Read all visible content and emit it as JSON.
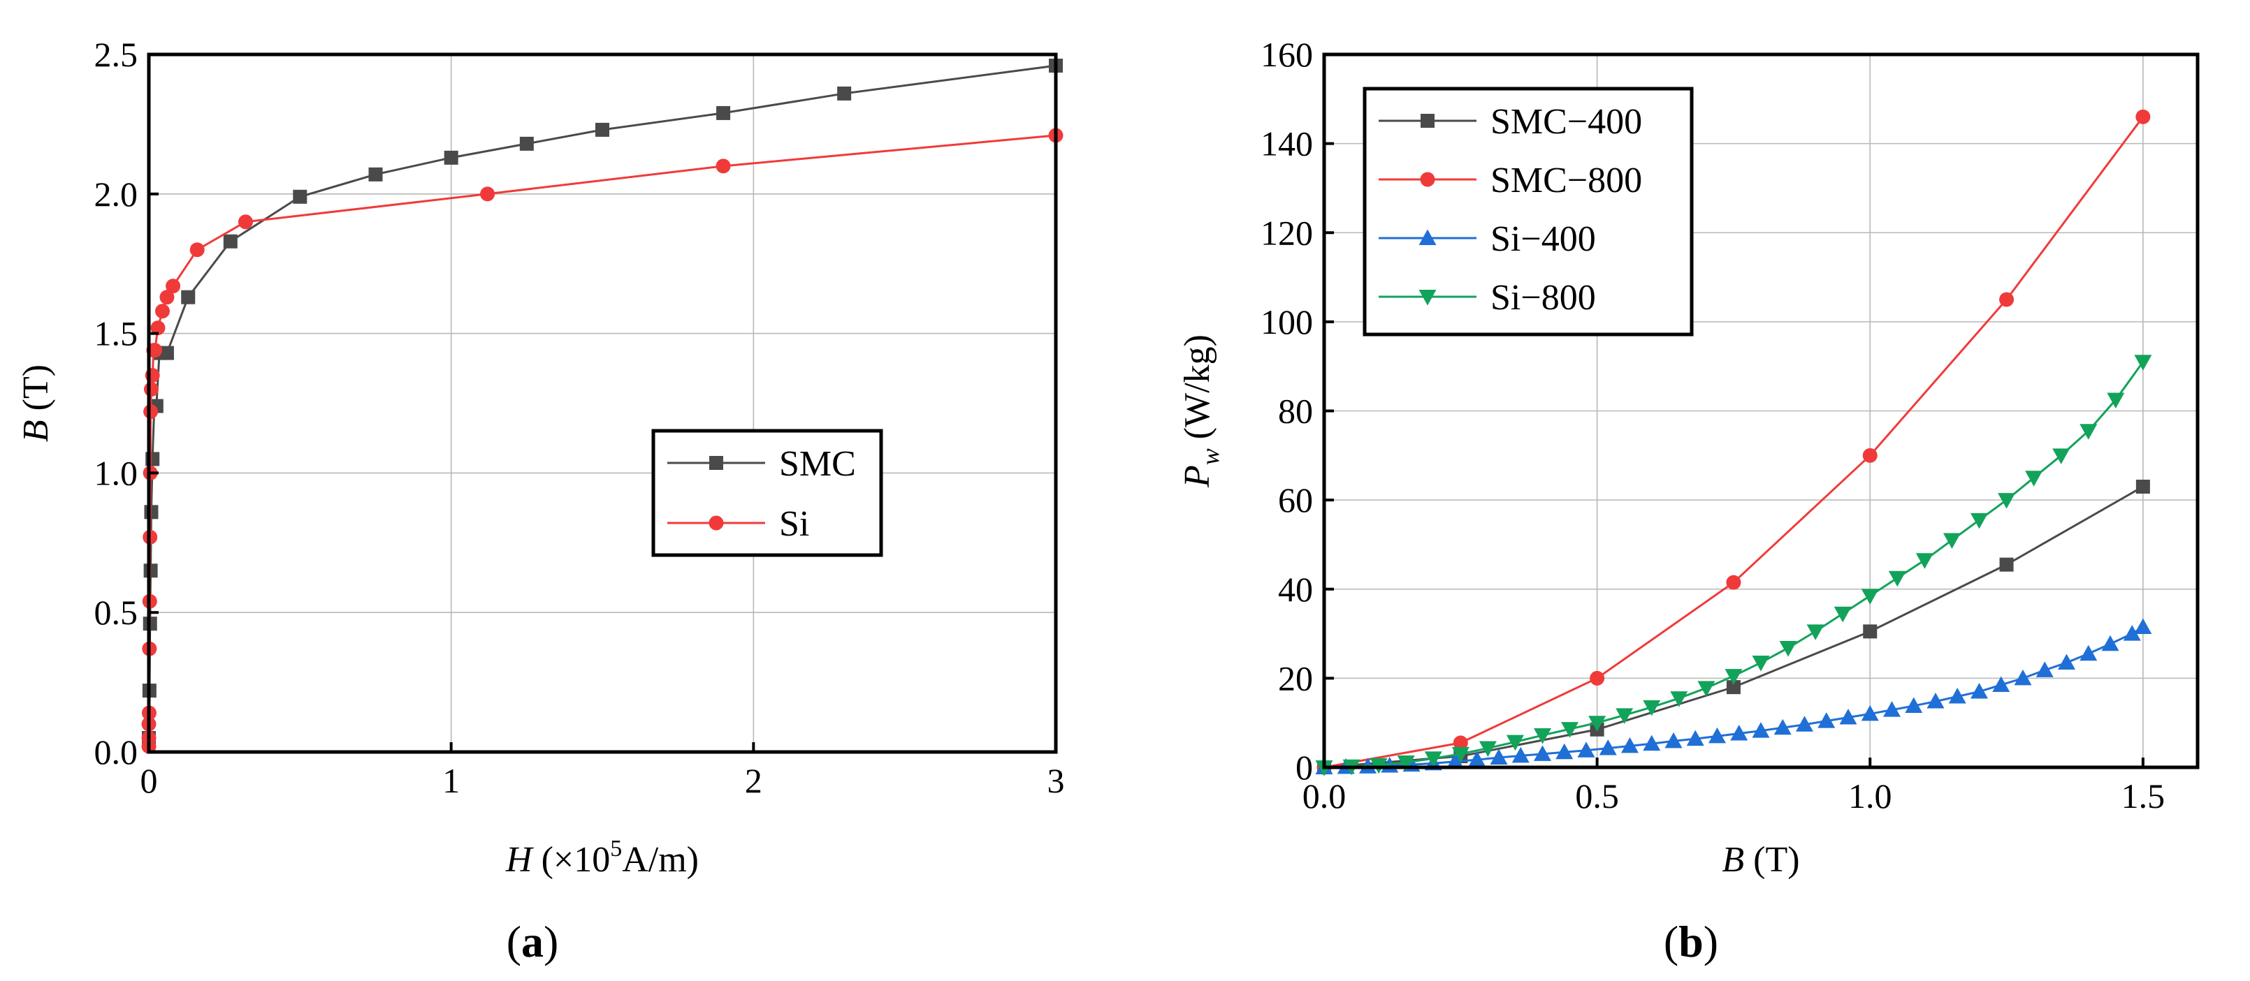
{
  "chart_data": [
    {
      "type": "line",
      "panel_label": "a",
      "title": "",
      "xlabel": {
        "italic": "H",
        "prefix": " (×10",
        "sup": "5",
        "suffix": "A/m)"
      },
      "ylabel": {
        "italic": "B",
        "suffix": " (T)"
      },
      "xlim": [
        0,
        3
      ],
      "ylim": [
        0,
        2.5
      ],
      "xticks": [
        0,
        1,
        2,
        3
      ],
      "xtick_labels": [
        "0",
        "1",
        "2",
        "3"
      ],
      "yticks": [
        0,
        0.5,
        1.0,
        1.5,
        2.0,
        2.5
      ],
      "ytick_labels": [
        "0.0",
        "0.5",
        "1.0",
        "1.5",
        "2.0",
        "2.5"
      ],
      "grid": true,
      "legend_position": "center-right",
      "series": [
        {
          "name": "SMC",
          "color": "#4a4a4a",
          "marker": "square",
          "x": [
            0.0,
            0.002,
            0.004,
            0.006,
            0.008,
            0.012,
            0.018,
            0.025,
            0.035,
            0.06,
            0.13,
            0.27,
            0.5,
            0.75,
            1.0,
            1.25,
            1.5,
            1.9,
            2.3,
            3.0
          ],
          "y": [
            0.05,
            0.22,
            0.46,
            0.65,
            0.86,
            1.05,
            1.24,
            1.24,
            1.43,
            1.43,
            1.63,
            1.83,
            1.99,
            2.07,
            2.13,
            2.18,
            2.23,
            2.29,
            2.36,
            2.46
          ]
        },
        {
          "name": "Si",
          "color": "#f03a3a",
          "marker": "circle",
          "x": [
            0.0,
            0.0,
            0.0,
            0.001,
            0.002,
            0.003,
            0.004,
            0.005,
            0.006,
            0.008,
            0.012,
            0.016,
            0.02,
            0.03,
            0.045,
            0.06,
            0.08,
            0.16,
            0.32,
            1.12,
            1.9,
            3.0
          ],
          "y": [
            0.02,
            0.05,
            0.1,
            0.14,
            0.37,
            0.54,
            0.77,
            1.0,
            1.22,
            1.3,
            1.35,
            1.44,
            1.44,
            1.52,
            1.58,
            1.63,
            1.67,
            1.8,
            1.9,
            2.0,
            2.1,
            2.21
          ]
        }
      ]
    },
    {
      "type": "line",
      "panel_label": "b",
      "title": "",
      "xlabel": {
        "italic": "B",
        "suffix": " (T)"
      },
      "ylabel": {
        "italic": "P",
        "sub": "w",
        "suffix": " (W/kg)"
      },
      "xlim": [
        0,
        1.6
      ],
      "ylim": [
        0,
        160
      ],
      "xticks": [
        0,
        0.5,
        1.0,
        1.5
      ],
      "xtick_labels": [
        "0.0",
        "0.5",
        "1.0",
        "1.5"
      ],
      "yticks": [
        0,
        20,
        40,
        60,
        80,
        100,
        120,
        140,
        160
      ],
      "ytick_labels": [
        "0",
        "20",
        "40",
        "60",
        "80",
        "100",
        "120",
        "140",
        "160"
      ],
      "grid": true,
      "legend_position": "top-left",
      "series": [
        {
          "name": "SMC−400",
          "color": "#4a4a4a",
          "marker": "square",
          "x": [
            0.0,
            0.25,
            0.5,
            0.75,
            1.0,
            1.25,
            1.5
          ],
          "y": [
            0,
            2.5,
            8.5,
            18,
            30.5,
            45.5,
            63
          ]
        },
        {
          "name": "SMC−800",
          "color": "#f03a3a",
          "marker": "circle",
          "x": [
            0.0,
            0.25,
            0.5,
            0.75,
            1.0,
            1.25,
            1.5
          ],
          "y": [
            0,
            5.5,
            20,
            41.5,
            70,
            105,
            146
          ]
        },
        {
          "name": "Si−400",
          "color": "#1f6fd6",
          "marker": "triangle-up",
          "x": [
            0.0,
            0.04,
            0.08,
            0.12,
            0.16,
            0.2,
            0.24,
            0.28,
            0.32,
            0.36,
            0.4,
            0.44,
            0.48,
            0.52,
            0.56,
            0.6,
            0.64,
            0.68,
            0.72,
            0.76,
            0.8,
            0.84,
            0.88,
            0.92,
            0.96,
            1.0,
            1.04,
            1.08,
            1.12,
            1.16,
            1.2,
            1.24,
            1.28,
            1.32,
            1.36,
            1.4,
            1.44,
            1.48,
            1.5
          ],
          "y": [
            0,
            0.1,
            0.2,
            0.4,
            0.6,
            0.9,
            1.3,
            1.7,
            2.2,
            2.6,
            3.0,
            3.4,
            3.8,
            4.3,
            4.8,
            5.3,
            5.9,
            6.4,
            7.0,
            7.6,
            8.2,
            8.9,
            9.6,
            10.4,
            11.2,
            12.0,
            12.9,
            13.8,
            14.8,
            15.9,
            17.0,
            18.5,
            20.0,
            21.8,
            23.5,
            25.5,
            27.7,
            30.0,
            31.5
          ]
        },
        {
          "name": "Si−800",
          "color": "#12a35a",
          "marker": "triangle-down",
          "x": [
            0.0,
            0.05,
            0.1,
            0.15,
            0.2,
            0.25,
            0.3,
            0.35,
            0.4,
            0.45,
            0.5,
            0.55,
            0.6,
            0.65,
            0.7,
            0.75,
            0.8,
            0.85,
            0.9,
            0.95,
            1.0,
            1.05,
            1.1,
            1.15,
            1.2,
            1.25,
            1.3,
            1.35,
            1.4,
            1.45,
            1.5
          ],
          "y": [
            0,
            0.2,
            0.5,
            1.1,
            2.0,
            3.0,
            4.3,
            5.7,
            7.2,
            8.6,
            10.0,
            11.7,
            13.5,
            15.5,
            17.8,
            20.5,
            23.5,
            26.8,
            30.5,
            34.5,
            38.5,
            42.5,
            46.5,
            51.0,
            55.5,
            60.0,
            65.0,
            70.0,
            75.5,
            82.5,
            91.0
          ]
        }
      ]
    }
  ]
}
